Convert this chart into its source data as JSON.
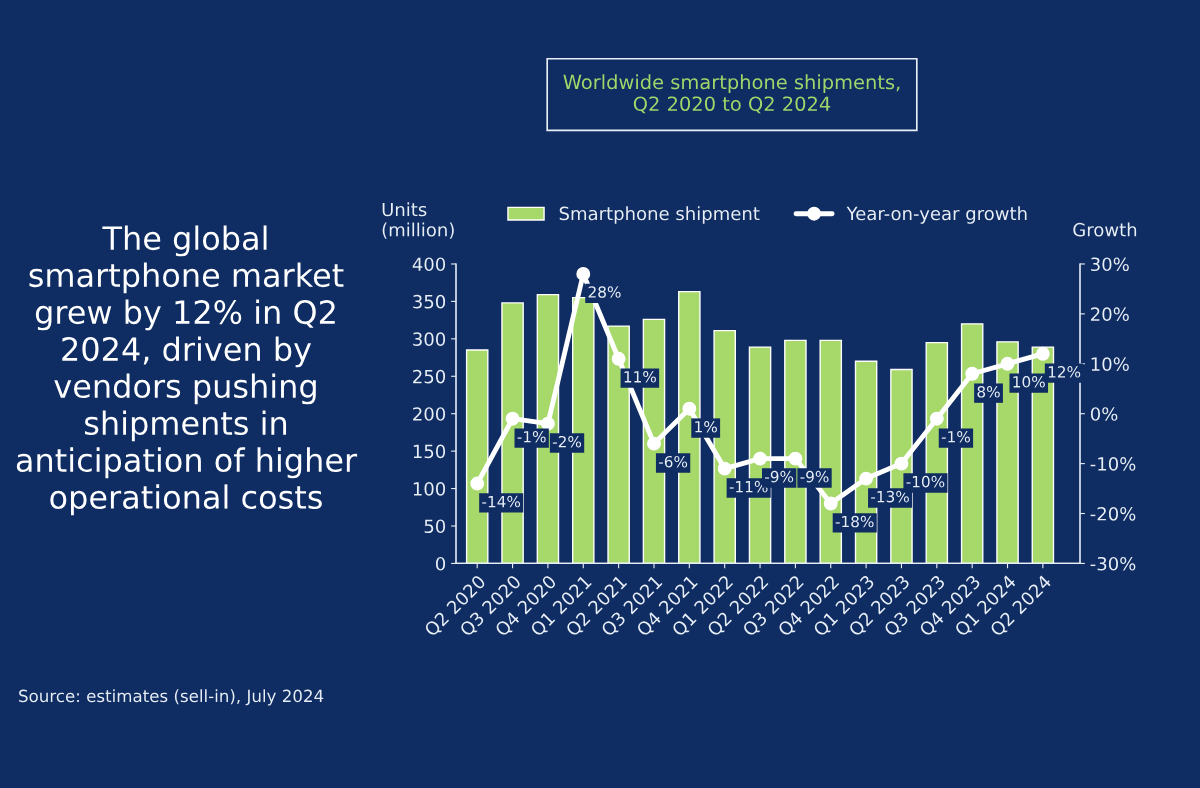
{
  "chart_data": {
    "type": "bar",
    "title": "Worldwide smartphone shipments,\nQ2 2020 to Q2 2024",
    "ylabel": "Units\n(million)",
    "y2label": "Growth",
    "annotations": [
      "The global\nsmartphone market\ngrew by 12% in Q2\n2024, driven by\nvendors pushing\nshipments in\nanticipation of higher\noperational costs",
      "Source: estimates (sell-in), July 2024"
    ],
    "categories": [
      "Q2 2020",
      "Q3 2020",
      "Q4 2020",
      "Q1 2021",
      "Q2 2021",
      "Q3 2021",
      "Q4 2021",
      "Q1 2022",
      "Q2 2022",
      "Q3 2022",
      "Q4 2022",
      "Q1 2023",
      "Q2 2023",
      "Q3 2023",
      "Q4 2023",
      "Q1 2024",
      "Q2 2024"
    ],
    "series": [
      {
        "name": "Smartphone shipment",
        "color": "#a6d86a",
        "values": [
          285,
          348,
          359,
          355,
          317,
          326,
          363,
          311,
          289,
          298,
          298,
          270,
          259,
          295,
          320,
          296,
          289
        ]
      },
      {
        "name": "Year-on-year growth",
        "type": "line",
        "axis": "y2",
        "color": "#ffffff",
        "marker": "circle",
        "values": [
          -14,
          -1,
          -2,
          28,
          11,
          -6,
          1,
          -11,
          -9,
          -9,
          -18,
          -13,
          -10,
          -1,
          8,
          10,
          12
        ],
        "value_labels": [
          "-14%",
          "-1%",
          "-2%",
          "28%",
          "11%",
          "-6%",
          "1%",
          "-11%",
          "-9%",
          "-9%",
          "-18%",
          "-13%",
          "-10%",
          "-1%",
          "8%",
          "10%",
          "12%"
        ]
      }
    ],
    "ylim": [
      0,
      400
    ],
    "yticks": [
      0,
      50,
      100,
      150,
      200,
      250,
      300,
      350,
      400
    ],
    "y2lim": [
      -30,
      30
    ],
    "y2ticks": [
      {
        "value": -30,
        "label": "-30%"
      },
      {
        "value": -20,
        "label": "-20%"
      },
      {
        "value": -10,
        "label": "-10%"
      },
      {
        "value": 0,
        "label": "0%"
      },
      {
        "value": 10,
        "label": "10%"
      },
      {
        "value": 20,
        "label": "20%"
      },
      {
        "value": 30,
        "label": "30%"
      }
    ],
    "grid": false,
    "legend": "top"
  }
}
